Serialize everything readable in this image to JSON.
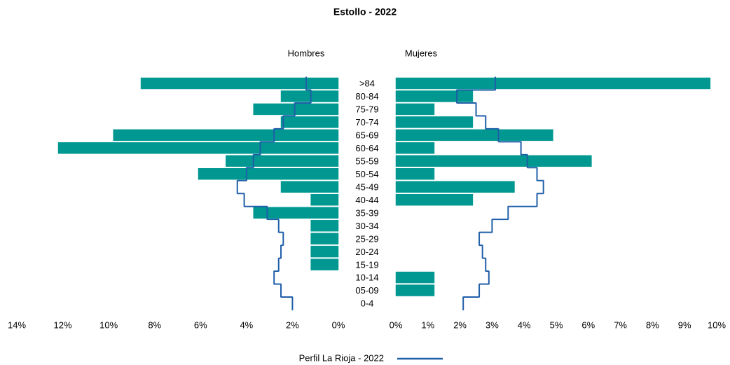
{
  "chart_data": {
    "type": "pyramid",
    "title": "Estollo - 2022",
    "categories": [
      ">84",
      "80-84",
      "75-79",
      "70-74",
      "65-69",
      "60-64",
      "55-59",
      "50-54",
      "45-49",
      "40-44",
      "35-39",
      "30-34",
      "25-29",
      "20-24",
      "15-19",
      "10-14",
      "05-09",
      "0-4"
    ],
    "bar_color": "#009890",
    "profile": {
      "name": "Perfil La Rioja - 2022",
      "color": "#1f5fa8"
    },
    "panels": [
      {
        "name": "Hombres",
        "values": [
          8.6,
          2.5,
          3.7,
          2.5,
          9.8,
          12.2,
          4.9,
          6.1,
          2.5,
          1.2,
          3.7,
          1.2,
          1.2,
          1.2,
          1.2,
          0,
          0,
          0
        ],
        "profile_values": [
          1.4,
          1.2,
          1.9,
          2.4,
          2.8,
          3.4,
          3.7,
          4.0,
          4.4,
          4.1,
          3.1,
          2.6,
          2.4,
          2.5,
          2.6,
          2.8,
          2.5,
          2.0
        ],
        "xlim": [
          14,
          0
        ],
        "xticks": [
          {
            "value": 14,
            "label": "14%"
          },
          {
            "value": 12,
            "label": "12%"
          },
          {
            "value": 10,
            "label": "10%"
          },
          {
            "value": 8,
            "label": "8%"
          },
          {
            "value": 6,
            "label": "6%"
          },
          {
            "value": 4,
            "label": "4%"
          },
          {
            "value": 2,
            "label": "2%"
          },
          {
            "value": 0,
            "label": "0%"
          }
        ]
      },
      {
        "name": "Mujeres",
        "values": [
          9.8,
          2.4,
          1.2,
          2.4,
          4.9,
          1.2,
          6.1,
          1.2,
          3.7,
          2.4,
          0,
          0,
          0,
          0,
          0,
          1.2,
          1.2,
          0
        ],
        "profile_values": [
          3.1,
          1.9,
          2.5,
          2.8,
          3.2,
          3.9,
          4.1,
          4.4,
          4.6,
          4.4,
          3.5,
          3.0,
          2.6,
          2.7,
          2.8,
          2.9,
          2.6,
          2.1
        ],
        "xlim": [
          0,
          10
        ],
        "xticks": [
          {
            "value": 0,
            "label": "0%"
          },
          {
            "value": 1,
            "label": "1%"
          },
          {
            "value": 2,
            "label": "2%"
          },
          {
            "value": 3,
            "label": "3%"
          },
          {
            "value": 4,
            "label": "4%"
          },
          {
            "value": 5,
            "label": "5%"
          },
          {
            "value": 6,
            "label": "6%"
          },
          {
            "value": 7,
            "label": "7%"
          },
          {
            "value": 8,
            "label": "8%"
          },
          {
            "value": 9,
            "label": "9%"
          },
          {
            "value": 10,
            "label": "10%"
          }
        ]
      }
    ]
  }
}
